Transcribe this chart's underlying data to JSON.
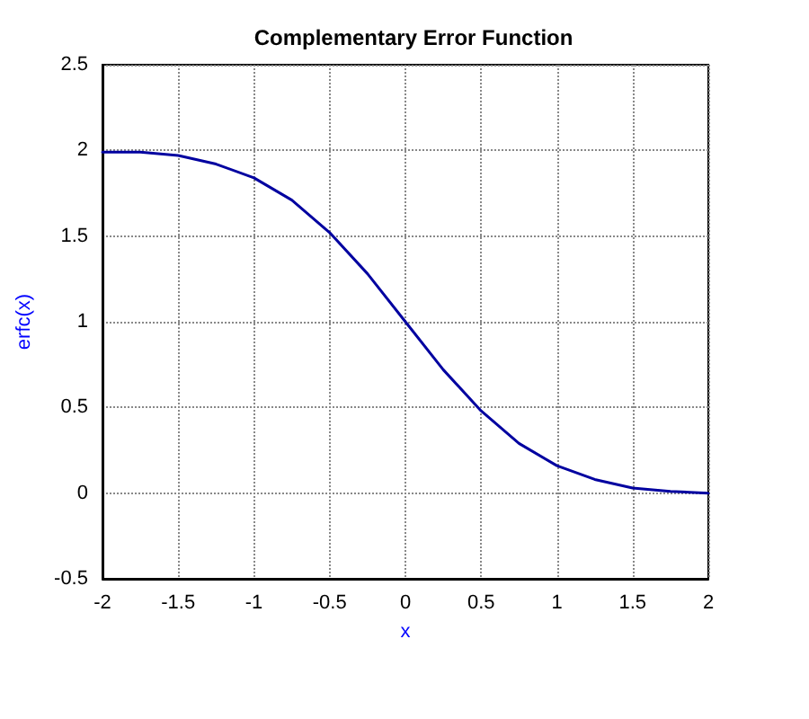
{
  "chart_data": {
    "type": "line",
    "title": "Complementary Error Function",
    "xlabel": "x",
    "ylabel": "erfc(x)",
    "x": [
      -2,
      -1.75,
      -1.5,
      -1.25,
      -1,
      -0.75,
      -0.5,
      -0.25,
      0,
      0.25,
      0.5,
      0.75,
      1,
      1.25,
      1.5,
      1.75,
      2
    ],
    "series": [
      {
        "color": "#0000a0",
        "values": [
          1.99,
          1.99,
          1.97,
          1.92,
          1.84,
          1.71,
          1.52,
          1.28,
          1.0,
          0.72,
          0.48,
          0.29,
          0.16,
          0.08,
          0.03,
          0.01,
          0.0
        ]
      }
    ],
    "xlim": [
      -2,
      2
    ],
    "xticks": [
      -2,
      -1.5,
      -1,
      -0.5,
      0,
      0.5,
      1,
      1.5,
      2
    ],
    "ylim": [
      -0.5,
      2.5
    ],
    "yticks": [
      -0.5,
      0,
      0.5,
      1,
      1.5,
      2,
      2.5
    ],
    "grid": true,
    "marker": "none",
    "line_style": "solid"
  }
}
